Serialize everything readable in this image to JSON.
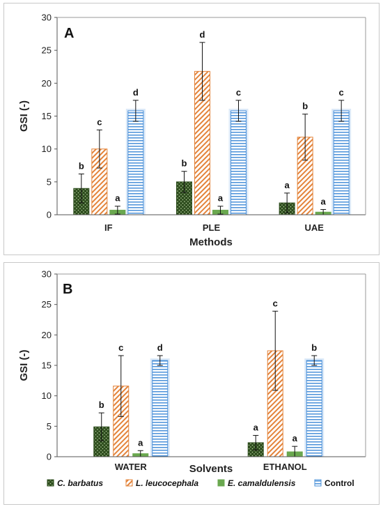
{
  "colors": {
    "c_barbatus_fill": "#2e4d1e",
    "c_barbatus_dot": "#b9d3a2",
    "l_leucocephala_stripe": "#e3833a",
    "e_camaldulensis": "#6aa84f",
    "control_stripe": "#4a90d9",
    "control_bg": "#dbe9f8"
  },
  "legend": {
    "items": [
      {
        "label": "C. barbatus",
        "key": "barbatus",
        "italic": true
      },
      {
        "label": "L. leucocephala",
        "key": "leucocephala",
        "italic": true
      },
      {
        "label": "E. camaldulensis",
        "key": "camaldulensis",
        "italic": true
      },
      {
        "label": "Control",
        "key": "control",
        "italic": false
      }
    ]
  },
  "chart_data": [
    {
      "panel": "A",
      "type": "bar",
      "ylabel": "GSI (-)",
      "xlabel": "Methods",
      "ylim": [
        0,
        30
      ],
      "yticks": [
        0,
        5,
        10,
        15,
        20,
        25,
        30
      ],
      "categories": [
        "IF",
        "PLE",
        "UAE"
      ],
      "grid": false,
      "legend": "bottom",
      "series": [
        {
          "name": "C. barbatus",
          "key": "barbatus",
          "values": [
            4.0,
            5.0,
            1.8
          ],
          "errors": [
            2.2,
            1.6,
            1.5
          ],
          "labels": [
            "b",
            "b",
            "a"
          ]
        },
        {
          "name": "L. leucocephala",
          "key": "leucocephala",
          "values": [
            10.0,
            21.8,
            11.8
          ],
          "errors": [
            2.9,
            4.4,
            3.5
          ],
          "labels": [
            "c",
            "d",
            "b"
          ]
        },
        {
          "name": "E. camaldulensis",
          "key": "camaldulensis",
          "values": [
            0.7,
            0.7,
            0.4
          ],
          "errors": [
            0.6,
            0.6,
            0.4
          ],
          "labels": [
            "a",
            "a",
            "a"
          ]
        },
        {
          "name": "Control",
          "key": "control",
          "values": [
            15.8,
            15.8,
            15.8
          ],
          "errors": [
            1.6,
            1.6,
            1.6
          ],
          "labels": [
            "d",
            "c",
            "c"
          ]
        }
      ]
    },
    {
      "panel": "B",
      "type": "bar",
      "ylabel": "GSI (-)",
      "xlabel": "Solvents",
      "ylim": [
        0,
        30
      ],
      "yticks": [
        0,
        5,
        10,
        15,
        20,
        25,
        30
      ],
      "categories": [
        "WATER",
        "ETHANOL"
      ],
      "grid": false,
      "legend": "bottom",
      "series": [
        {
          "name": "C. barbatus",
          "key": "barbatus",
          "values": [
            4.9,
            2.3
          ],
          "errors": [
            2.3,
            1.2
          ],
          "labels": [
            "b",
            "a"
          ]
        },
        {
          "name": "L. leucocephala",
          "key": "leucocephala",
          "values": [
            11.6,
            17.4
          ],
          "errors": [
            5.0,
            6.5
          ],
          "labels": [
            "c",
            "c"
          ]
        },
        {
          "name": "E. camaldulensis",
          "key": "camaldulensis",
          "values": [
            0.5,
            0.8
          ],
          "errors": [
            0.5,
            0.9
          ],
          "labels": [
            "a",
            "a"
          ]
        },
        {
          "name": "Control",
          "key": "control",
          "values": [
            15.8,
            15.8
          ],
          "errors": [
            0.8,
            0.8
          ],
          "labels": [
            "d",
            "b"
          ]
        }
      ]
    }
  ]
}
